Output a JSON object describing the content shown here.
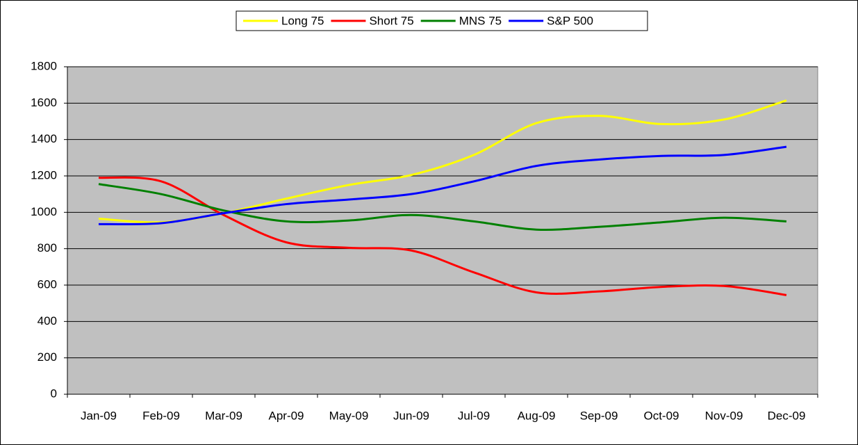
{
  "chart_data": {
    "type": "line",
    "categories": [
      "Jan-09",
      "Feb-09",
      "Mar-09",
      "Apr-09",
      "May-09",
      "Jun-09",
      "Jul-09",
      "Aug-09",
      "Sep-09",
      "Oct-09",
      "Nov-09",
      "Dec-09"
    ],
    "series": [
      {
        "name": "Long 75",
        "color": "#ffff00",
        "values": [
          965,
          945,
          995,
          1075,
          1150,
          1205,
          1315,
          1490,
          1530,
          1485,
          1510,
          1615
        ]
      },
      {
        "name": "Short 75",
        "color": "#ff0000",
        "values": [
          1190,
          1170,
          985,
          835,
          805,
          790,
          670,
          560,
          565,
          590,
          595,
          545
        ]
      },
      {
        "name": "MNS 75",
        "color": "#008000",
        "values": [
          1155,
          1100,
          1010,
          950,
          955,
          985,
          950,
          905,
          920,
          945,
          970,
          950
        ]
      },
      {
        "name": "S&P 500",
        "color": "#0000ff",
        "values": [
          935,
          940,
          995,
          1045,
          1070,
          1100,
          1170,
          1255,
          1290,
          1310,
          1315,
          1360
        ]
      }
    ],
    "ylim": [
      0,
      1800
    ],
    "yticks": [
      0,
      200,
      400,
      600,
      800,
      1000,
      1200,
      1400,
      1600,
      1800
    ],
    "grid": true,
    "legend": "top",
    "plot_background": "#c0c0c0"
  }
}
